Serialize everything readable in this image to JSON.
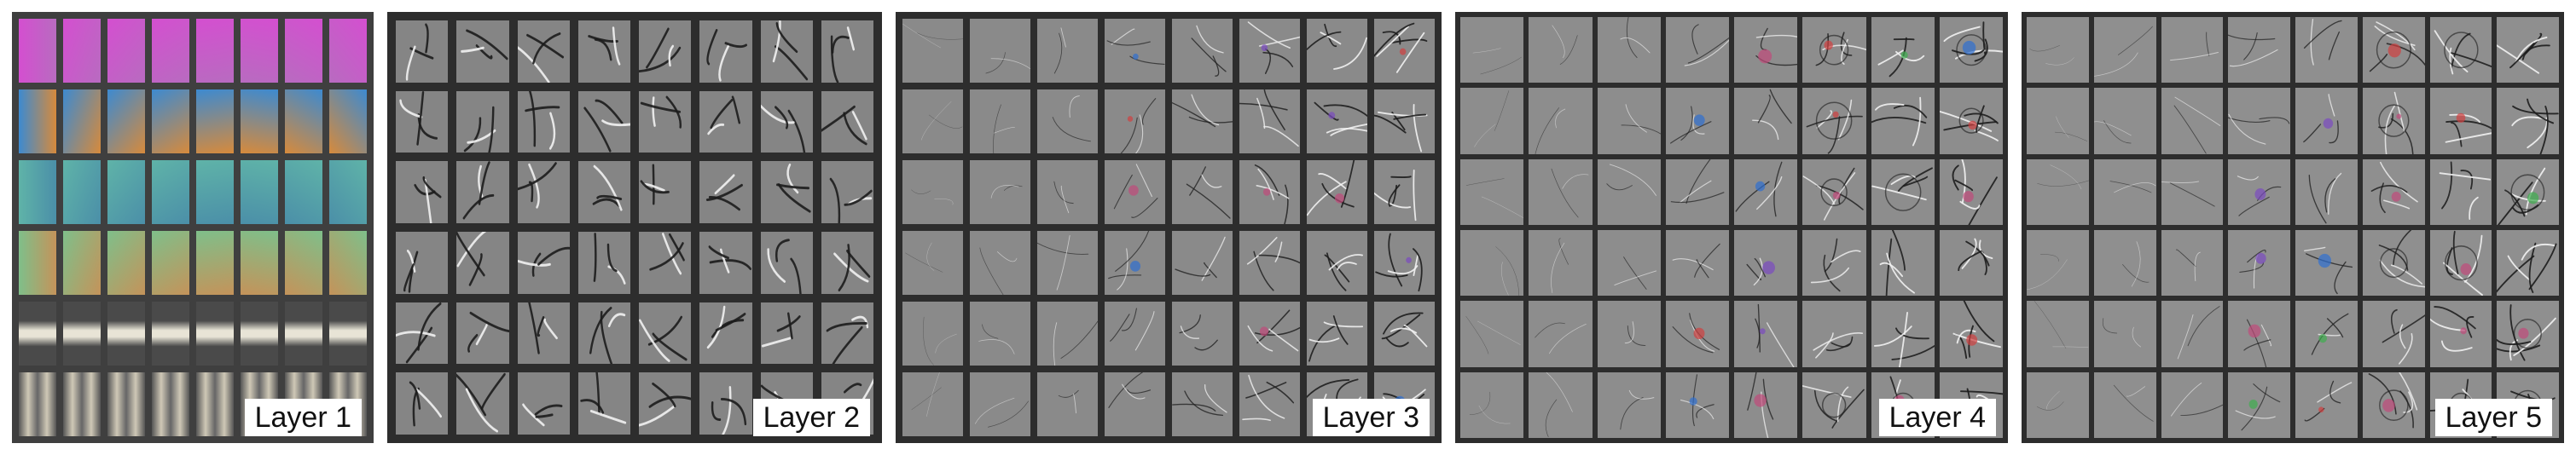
{
  "figure": {
    "panels": [
      {
        "label": "Layer 1",
        "grid": {
          "rows": 6,
          "cols": 8
        },
        "background": "#3f3f3f",
        "cell_color": "#7e847c"
      },
      {
        "label": "Layer 2",
        "grid": {
          "rows": 6,
          "cols": 8
        },
        "background": "#2d2d2d",
        "cell_color": "#858585"
      },
      {
        "label": "Layer 3",
        "grid": {
          "rows": 6,
          "cols": 8
        },
        "background": "#2d2d2d",
        "cell_color": "#8a8a8a"
      },
      {
        "label": "Layer 4",
        "grid": {
          "rows": 6,
          "cols": 8
        },
        "background": "#2d2d2d",
        "cell_color": "#8d8d8d"
      },
      {
        "label": "Layer 5",
        "grid": {
          "rows": 6,
          "cols": 8
        },
        "background": "#2d2d2d",
        "cell_color": "#8f8f8f"
      }
    ],
    "layer1_row_palettes": [
      [
        "#d44fd0",
        "#b86bc0"
      ],
      [
        "#3d8ad0",
        "#d68a3c"
      ],
      [
        "#5fb3a8",
        "#4b8fa8"
      ],
      [
        "#7fbf8a",
        "#c4935a"
      ],
      [
        "#e0dccf",
        "#4a4a4a"
      ],
      [
        "#8a8a8a",
        "#c9c2b2"
      ]
    ]
  }
}
